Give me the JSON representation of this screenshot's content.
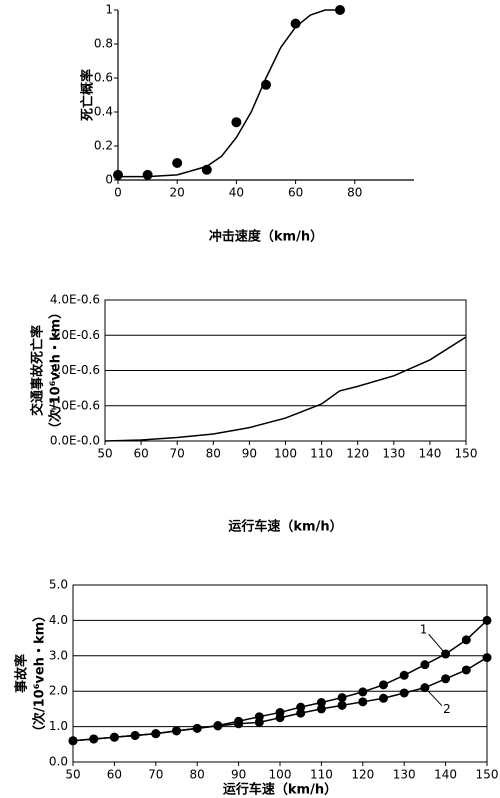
{
  "chart_data": [
    {
      "type": "scatter",
      "xlabel": "冲击速度（km/h）",
      "ylabel": [
        "死亡概率"
      ],
      "xlim": [
        0,
        100
      ],
      "ylim": [
        0,
        1
      ],
      "xticks": [
        0,
        20,
        40,
        60,
        80
      ],
      "yticks": [
        0,
        0.2,
        0.4,
        0.6,
        0.8,
        1
      ],
      "grid": false,
      "frame": false,
      "series": [
        {
          "style": "line",
          "color": "#000000",
          "x": [
            0,
            10,
            20,
            30,
            35,
            40,
            45,
            50,
            55,
            60,
            65,
            70,
            75
          ],
          "values": [
            0.02,
            0.02,
            0.03,
            0.08,
            0.14,
            0.25,
            0.4,
            0.6,
            0.78,
            0.9,
            0.97,
            1.0,
            1.0
          ]
        },
        {
          "style": "points",
          "color": "#000000",
          "x": [
            0,
            10,
            20,
            30,
            40,
            50,
            60,
            75
          ],
          "values": [
            0.03,
            0.03,
            0.1,
            0.06,
            0.34,
            0.56,
            0.92,
            1.0
          ]
        }
      ]
    },
    {
      "type": "line",
      "xlabel": "运行车速（km/h）",
      "ylabel": [
        "交通事故死亡率",
        "（次/10⁶veh・km）"
      ],
      "xlim": [
        50,
        150
      ],
      "ylim": [
        0,
        4
      ],
      "xticks": [
        50,
        60,
        70,
        80,
        90,
        100,
        110,
        120,
        130,
        140,
        150
      ],
      "yticks": [
        {
          "value": 0,
          "label": "0.0E-0.0"
        },
        {
          "value": 1,
          "label": "1.0E-0.6"
        },
        {
          "value": 2,
          "label": "2.0E-0.6"
        },
        {
          "value": 3,
          "label": "3.0E-0.6"
        },
        {
          "value": 4,
          "label": "4.0E-0.6"
        }
      ],
      "grid": true,
      "frame": true,
      "series": [
        {
          "style": "line",
          "color": "#000000",
          "x": [
            50,
            60,
            70,
            80,
            90,
            100,
            110,
            115,
            120,
            130,
            140,
            150
          ],
          "values": [
            0,
            0.03,
            0.1,
            0.2,
            0.38,
            0.65,
            1.05,
            1.42,
            1.55,
            1.85,
            2.3,
            2.95
          ]
        }
      ]
    },
    {
      "type": "line",
      "xlabel": "运行车速（km/h）",
      "ylabel": [
        "事故率",
        "（次/10⁶veh・km）"
      ],
      "xlim": [
        50,
        150
      ],
      "ylim": [
        0,
        5
      ],
      "xticks": [
        50,
        60,
        70,
        80,
        90,
        100,
        110,
        120,
        130,
        140,
        150
      ],
      "yticks": [
        {
          "value": 0,
          "label": "0.0"
        },
        {
          "value": 1,
          "label": "1.0"
        },
        {
          "value": 2,
          "label": "2.0"
        },
        {
          "value": 3,
          "label": "3.0"
        },
        {
          "value": 4,
          "label": "4.0"
        },
        {
          "value": 5,
          "label": "5.0"
        }
      ],
      "grid": true,
      "frame": true,
      "series": [
        {
          "name": "1",
          "style": "line+points",
          "color": "#000000",
          "x": [
            50,
            55,
            60,
            65,
            70,
            75,
            80,
            85,
            90,
            95,
            100,
            105,
            110,
            115,
            120,
            125,
            130,
            135,
            140,
            145,
            150
          ],
          "values": [
            0.6,
            0.65,
            0.7,
            0.75,
            0.8,
            0.88,
            0.95,
            1.03,
            1.15,
            1.28,
            1.4,
            1.55,
            1.68,
            1.82,
            1.98,
            2.18,
            2.45,
            2.75,
            3.05,
            3.45,
            4.0
          ]
        },
        {
          "name": "2",
          "style": "line+points",
          "color": "#000000",
          "x": [
            50,
            55,
            60,
            65,
            70,
            75,
            80,
            85,
            90,
            95,
            100,
            105,
            110,
            115,
            120,
            125,
            130,
            135,
            140,
            145,
            150
          ],
          "values": [
            0.6,
            0.65,
            0.7,
            0.75,
            0.8,
            0.88,
            0.95,
            1.02,
            1.08,
            1.12,
            1.25,
            1.38,
            1.5,
            1.6,
            1.7,
            1.8,
            1.95,
            2.1,
            2.35,
            2.6,
            2.95
          ]
        }
      ]
    }
  ]
}
